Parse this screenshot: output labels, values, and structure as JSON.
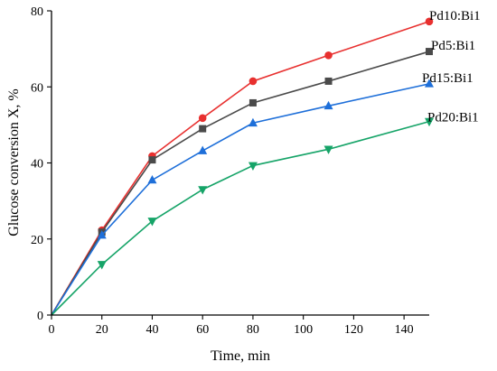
{
  "chart_data": {
    "type": "line",
    "xlabel": "Time, min",
    "ylabel": "Glucose conversion X, %",
    "xlim": [
      0,
      150
    ],
    "ylim": [
      0,
      80
    ],
    "xticks": [
      0,
      20,
      40,
      60,
      80,
      100,
      120,
      140
    ],
    "yticks": [
      0,
      20,
      40,
      60,
      80
    ],
    "grid": false,
    "legend": "inline labels at line ends (right)",
    "x": [
      0,
      20,
      40,
      60,
      80,
      110,
      150
    ],
    "series": [
      {
        "name": "Pd10:Bi1",
        "color": "#e8302f",
        "marker": "circle",
        "values": [
          0,
          22.3,
          41.8,
          51.8,
          61.5,
          68.3,
          77.2
        ]
      },
      {
        "name": "Pd5:Bi1",
        "color": "#4a4a4a",
        "marker": "square",
        "values": [
          0,
          21.8,
          40.8,
          49.0,
          55.8,
          61.5,
          69.3
        ]
      },
      {
        "name": "Pd15:Bi1",
        "color": "#1e6fd9",
        "marker": "triangle-up",
        "values": [
          0,
          21.0,
          35.5,
          43.2,
          50.5,
          55.0,
          60.8
        ]
      },
      {
        "name": "Pd20:Bi1",
        "color": "#16a468",
        "marker": "triangle-down",
        "values": [
          0,
          13.3,
          24.7,
          33.0,
          39.3,
          43.6,
          50.9
        ]
      }
    ]
  }
}
